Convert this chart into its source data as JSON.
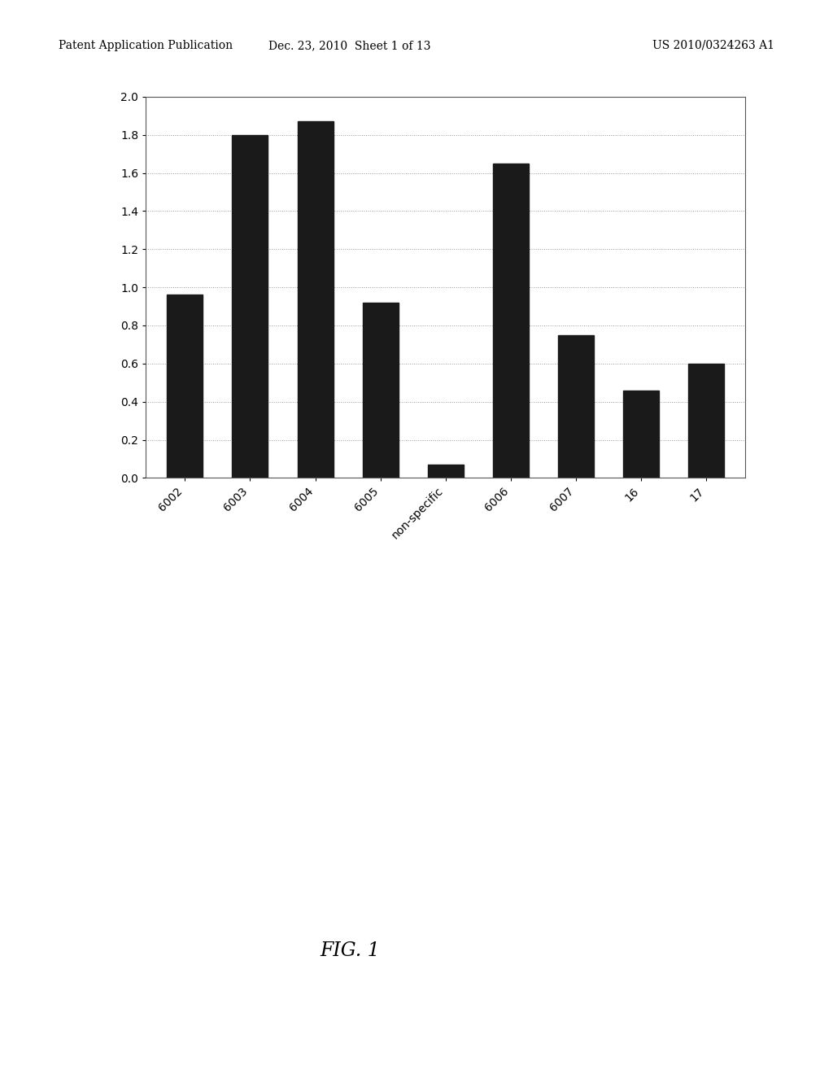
{
  "categories": [
    "6002",
    "6003",
    "6004",
    "6005",
    "non-specific",
    "6006",
    "6007",
    "16",
    "17"
  ],
  "values": [
    0.96,
    1.8,
    1.87,
    0.92,
    0.07,
    1.65,
    0.75,
    0.46,
    0.6
  ],
  "bar_color": "#1a1a1a",
  "ylim": [
    0,
    2.0
  ],
  "yticks": [
    0,
    0.2,
    0.4,
    0.6,
    0.8,
    1.0,
    1.2,
    1.4,
    1.6,
    1.8,
    2.0
  ],
  "figure_caption": "FIG. 1",
  "header_left": "Patent Application Publication",
  "header_center": "Dec. 23, 2010  Sheet 1 of 13",
  "header_right": "US 2010/0324263 A1",
  "background_color": "#ffffff",
  "chart_bg": "#ffffff",
  "grid_color": "#999999",
  "bar_width": 0.55,
  "tick_fontsize": 10,
  "caption_fontsize": 17,
  "header_fontsize": 10
}
